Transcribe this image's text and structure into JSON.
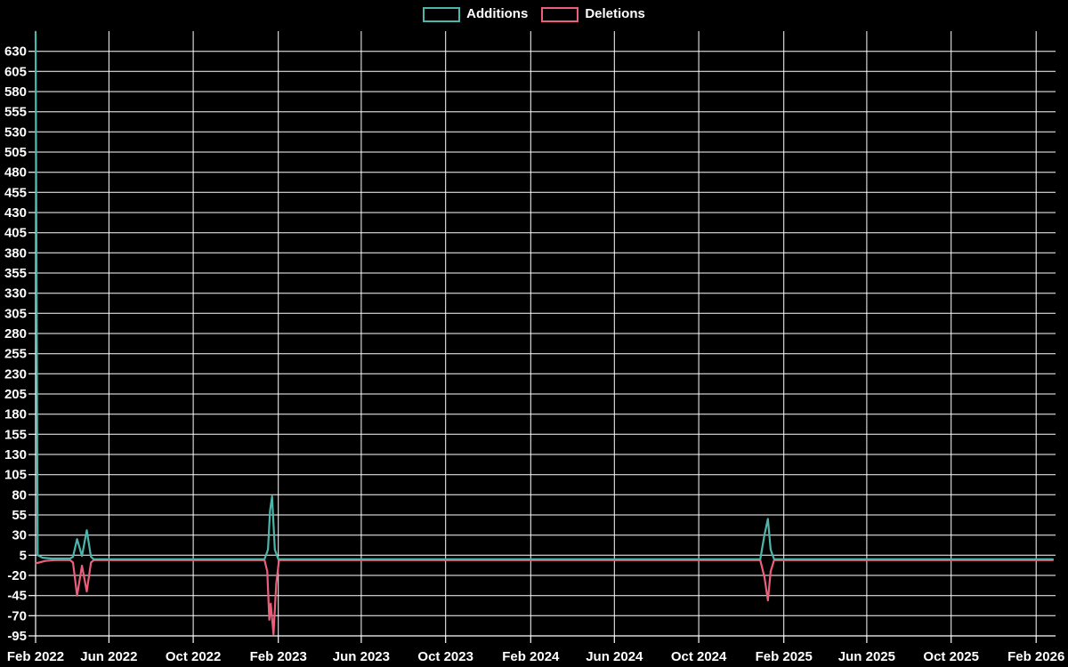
{
  "chart_data": {
    "type": "line",
    "title": "",
    "xlabel": "",
    "ylabel": "",
    "background_color": "#000000",
    "grid": true,
    "grid_color": "#ffffff",
    "axis_color": "#ffffff",
    "tick_label_color": "#ffffff",
    "legend_position": "top-center",
    "x_axis": {
      "type": "time",
      "start": "2022-02-15",
      "end": "2026-03-01",
      "tick_labels": [
        "Feb 2022",
        "Jun 2022",
        "Oct 2022",
        "Feb 2023",
        "Jun 2023",
        "Oct 2023",
        "Feb 2024",
        "Jun 2024",
        "Oct 2024",
        "Feb 2025",
        "Jun 2025",
        "Oct 2025",
        "Feb 2026"
      ],
      "tick_dates": [
        "2022-02-01",
        "2022-06-01",
        "2022-10-01",
        "2023-02-01",
        "2023-06-01",
        "2023-10-01",
        "2024-02-01",
        "2024-06-01",
        "2024-10-01",
        "2025-02-01",
        "2025-06-01",
        "2025-10-01",
        "2026-02-01"
      ]
    },
    "y_axis": {
      "min": -95,
      "max": 655,
      "tick_step": 25,
      "ticks": [
        -95,
        -70,
        -45,
        -20,
        5,
        30,
        55,
        80,
        105,
        130,
        155,
        180,
        205,
        230,
        255,
        280,
        305,
        330,
        355,
        380,
        405,
        430,
        455,
        480,
        505,
        530,
        555,
        580,
        605,
        630
      ]
    },
    "series": [
      {
        "name": "Additions",
        "color": "#4db6ac",
        "points": [
          [
            "2022-02-15",
            654
          ],
          [
            "2022-02-18",
            5
          ],
          [
            "2022-02-25",
            2
          ],
          [
            "2022-03-10",
            1
          ],
          [
            "2022-04-06",
            1
          ],
          [
            "2022-04-10",
            3
          ],
          [
            "2022-04-16",
            25
          ],
          [
            "2022-04-23",
            4
          ],
          [
            "2022-04-30",
            36
          ],
          [
            "2022-05-06",
            3
          ],
          [
            "2022-05-10",
            0
          ],
          [
            "2022-08-01",
            0
          ],
          [
            "2023-01-12",
            0
          ],
          [
            "2023-01-17",
            12
          ],
          [
            "2023-01-20",
            60
          ],
          [
            "2023-01-23",
            78
          ],
          [
            "2023-01-27",
            12
          ],
          [
            "2023-02-01",
            0
          ],
          [
            "2023-08-01",
            0
          ],
          [
            "2024-06-01",
            0
          ],
          [
            "2024-12-29",
            0
          ],
          [
            "2025-01-04",
            30
          ],
          [
            "2025-01-09",
            50
          ],
          [
            "2025-01-13",
            12
          ],
          [
            "2025-01-18",
            0
          ],
          [
            "2025-08-01",
            0
          ],
          [
            "2026-02-25",
            0
          ]
        ]
      },
      {
        "name": "Deletions",
        "color": "#ec5f7a",
        "points": [
          [
            "2022-02-15",
            -5
          ],
          [
            "2022-02-20",
            -4
          ],
          [
            "2022-03-01",
            -2
          ],
          [
            "2022-03-15",
            -1
          ],
          [
            "2022-04-06",
            -1
          ],
          [
            "2022-04-10",
            -4
          ],
          [
            "2022-04-16",
            -45
          ],
          [
            "2022-04-23",
            -8
          ],
          [
            "2022-04-30",
            -40
          ],
          [
            "2022-05-06",
            -4
          ],
          [
            "2022-05-10",
            -1
          ],
          [
            "2022-08-01",
            -1
          ],
          [
            "2023-01-12",
            -1
          ],
          [
            "2023-01-16",
            -15
          ],
          [
            "2023-01-19",
            -75
          ],
          [
            "2023-01-21",
            -55
          ],
          [
            "2023-01-25",
            -93
          ],
          [
            "2023-01-29",
            -30
          ],
          [
            "2023-02-02",
            -1
          ],
          [
            "2023-08-01",
            -1
          ],
          [
            "2024-06-01",
            -1
          ],
          [
            "2024-12-29",
            -1
          ],
          [
            "2025-01-04",
            -22
          ],
          [
            "2025-01-09",
            -51
          ],
          [
            "2025-01-13",
            -15
          ],
          [
            "2025-01-18",
            -1
          ],
          [
            "2025-08-01",
            -1
          ],
          [
            "2026-02-25",
            -1
          ]
        ]
      }
    ]
  }
}
